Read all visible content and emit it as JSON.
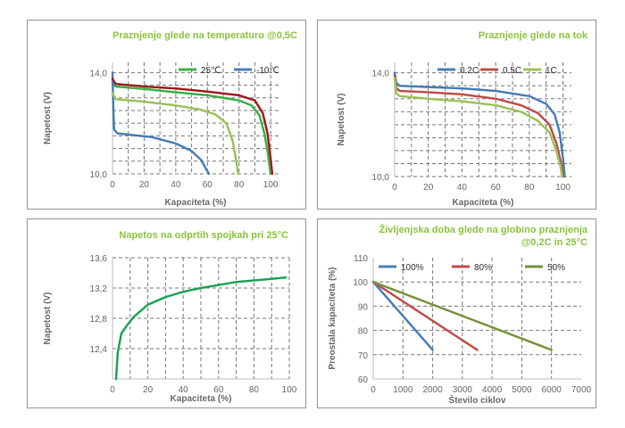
{
  "chart_data": [
    {
      "type": "line",
      "title": "Praznjenje glede na temperaturo @0,5C",
      "xlabel": "Kapaciteta (%)",
      "ylabel": "Napetost (V)",
      "xlim": [
        0,
        105
      ],
      "ylim": [
        10,
        14.4
      ],
      "xticks": [
        "0",
        "20",
        "40",
        "60",
        "80",
        "100"
      ],
      "yticks": [
        "10,0",
        "14,0"
      ],
      "legend_position": "top-right",
      "series": [
        {
          "name": "25℃",
          "color": "#3db24a",
          "points": [
            [
              0,
              13.65
            ],
            [
              2,
              13.45
            ],
            [
              20,
              13.35
            ],
            [
              40,
              13.22
            ],
            [
              60,
              13.1
            ],
            [
              80,
              12.9
            ],
            [
              88,
              12.7
            ],
            [
              93,
              12.3
            ],
            [
              96,
              11.6
            ],
            [
              98,
              10.9
            ],
            [
              100,
              10.0
            ]
          ]
        },
        {
          "name": "-10℃",
          "color": "#4a7fb8",
          "points": [
            [
              0,
              14.0
            ],
            [
              0.5,
              12.6
            ],
            [
              1,
              11.75
            ],
            [
              3,
              11.6
            ],
            [
              10,
              11.55
            ],
            [
              25,
              11.45
            ],
            [
              40,
              11.2
            ],
            [
              50,
              10.9
            ],
            [
              56,
              10.55
            ],
            [
              60,
              10.1
            ],
            [
              61,
              10.0
            ]
          ]
        },
        {
          "name": "",
          "color": "#a31f22",
          "points": [
            [
              0,
              13.75
            ],
            [
              2,
              13.55
            ],
            [
              20,
              13.45
            ],
            [
              40,
              13.37
            ],
            [
              60,
              13.25
            ],
            [
              80,
              13.1
            ],
            [
              90,
              12.9
            ],
            [
              95,
              12.4
            ],
            [
              98,
              11.6
            ],
            [
              100,
              10.6
            ],
            [
              101,
              10.0
            ]
          ]
        },
        {
          "name": "",
          "color": "#9bc45a",
          "points": [
            [
              0,
              13.2
            ],
            [
              2,
              12.95
            ],
            [
              20,
              12.85
            ],
            [
              40,
              12.7
            ],
            [
              55,
              12.55
            ],
            [
              65,
              12.35
            ],
            [
              72,
              12.0
            ],
            [
              76,
              11.3
            ],
            [
              78,
              10.6
            ],
            [
              79.5,
              10.0
            ]
          ]
        }
      ]
    },
    {
      "type": "line",
      "title": "Praznjenje glede na tok",
      "xlabel": "Kapaciteta (%)",
      "ylabel": "Napetost (V)",
      "xlim": [
        0,
        105
      ],
      "ylim": [
        10,
        14.4
      ],
      "xticks": [
        "0",
        "20",
        "40",
        "60",
        "80",
        "100"
      ],
      "yticks": [
        "10,0",
        "14,0"
      ],
      "legend_position": "top-right",
      "series": [
        {
          "name": "0.2C",
          "color": "#4a7fb8",
          "points": [
            [
              0,
              14.0
            ],
            [
              1,
              13.6
            ],
            [
              3,
              13.5
            ],
            [
              20,
              13.45
            ],
            [
              40,
              13.4
            ],
            [
              60,
              13.3
            ],
            [
              80,
              13.1
            ],
            [
              90,
              12.8
            ],
            [
              95,
              12.4
            ],
            [
              98,
              11.7
            ],
            [
              100,
              10.7
            ],
            [
              101,
              10.0
            ]
          ]
        },
        {
          "name": "0.5C",
          "color": "#c0504d",
          "points": [
            [
              0,
              13.9
            ],
            [
              1,
              13.4
            ],
            [
              3,
              13.3
            ],
            [
              20,
              13.25
            ],
            [
              40,
              13.17
            ],
            [
              60,
              13.0
            ],
            [
              75,
              12.75
            ],
            [
              85,
              12.45
            ],
            [
              92,
              12.0
            ],
            [
              96,
              11.3
            ],
            [
              99,
              10.5
            ],
            [
              100,
              10.0
            ]
          ]
        },
        {
          "name": "1C",
          "color": "#9bc45a",
          "points": [
            [
              0,
              13.8
            ],
            [
              1,
              13.2
            ],
            [
              3,
              13.1
            ],
            [
              20,
              13.0
            ],
            [
              40,
              12.9
            ],
            [
              60,
              12.75
            ],
            [
              75,
              12.5
            ],
            [
              85,
              12.15
            ],
            [
              92,
              11.7
            ],
            [
              96,
              11.0
            ],
            [
              98.5,
              10.4
            ],
            [
              99.5,
              10.0
            ]
          ]
        }
      ]
    },
    {
      "type": "line",
      "title": "Napetos na odprtih spojkah pri 25°C",
      "xlabel": "Kapaciteta (%)",
      "ylabel": "Napetost (V)",
      "xlim": [
        0,
        100
      ],
      "ylim": [
        12.0,
        13.6
      ],
      "xticks": [
        "0",
        "20",
        "40",
        "60",
        "80",
        "100"
      ],
      "yticks": [
        "12,4",
        "12,8",
        "13,2",
        "13,6"
      ],
      "series": [
        {
          "name": "",
          "color": "#22a45a",
          "points": [
            [
              2,
              12.0
            ],
            [
              3,
              12.35
            ],
            [
              5,
              12.6
            ],
            [
              8,
              12.7
            ],
            [
              12,
              12.82
            ],
            [
              20,
              12.98
            ],
            [
              30,
              13.08
            ],
            [
              40,
              13.15
            ],
            [
              50,
              13.2
            ],
            [
              60,
              13.24
            ],
            [
              70,
              13.28
            ],
            [
              80,
              13.3
            ],
            [
              90,
              13.32
            ],
            [
              98,
              13.34
            ]
          ]
        }
      ]
    },
    {
      "type": "line",
      "title": "Življenjska doba glede na globino praznjenja @0,2C in 25°C",
      "title_lines": [
        "Življenjska doba glede na globino praznjenja",
        "@0,2C in 25°C"
      ],
      "xlabel": "Število ciklov",
      "ylabel": "Preostala kapaciteta (%)",
      "xlim": [
        0,
        7000
      ],
      "ylim": [
        60,
        110
      ],
      "xticks": [
        "0",
        "1000",
        "2000",
        "3000",
        "4000",
        "5000",
        "6000",
        "7000"
      ],
      "yticks": [
        "60",
        "70",
        "80",
        "90",
        "100",
        "110"
      ],
      "legend_position": "top-left",
      "series": [
        {
          "name": "100%",
          "color": "#4a7fb8",
          "points": [
            [
              0,
              100
            ],
            [
              2000,
              72
            ]
          ]
        },
        {
          "name": "80%",
          "color": "#c0504d",
          "points": [
            [
              0,
              100
            ],
            [
              3500,
              72
            ]
          ]
        },
        {
          "name": "50%",
          "color": "#77933c",
          "points": [
            [
              0,
              100
            ],
            [
              6000,
              72
            ]
          ]
        }
      ]
    }
  ]
}
